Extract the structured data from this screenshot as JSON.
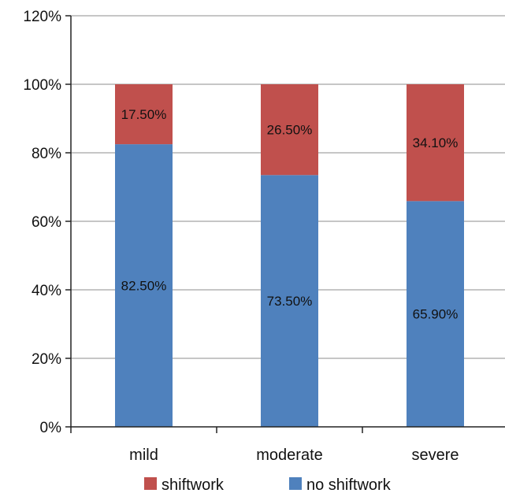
{
  "chart_data": {
    "type": "bar",
    "stacked": true,
    "categories": [
      "mild",
      "moderate",
      "severe"
    ],
    "series": [
      {
        "name": "no shiftwork",
        "values": [
          82.5,
          73.5,
          65.9
        ],
        "labels": [
          "82.50%",
          "73.50%",
          "65.90%"
        ],
        "color": "#4f81bd"
      },
      {
        "name": "shiftwork",
        "values": [
          17.5,
          26.5,
          34.1
        ],
        "labels": [
          "17.50%",
          "26.50%",
          "34.10%"
        ],
        "color": "#c0504d"
      }
    ],
    "ylim": [
      0,
      120
    ],
    "yticks": [
      "0%",
      "20%",
      "40%",
      "60%",
      "80%",
      "100%",
      "120%"
    ],
    "grid": true,
    "legend": {
      "position": "bottom",
      "order": [
        "shiftwork",
        "no shiftwork"
      ]
    }
  }
}
